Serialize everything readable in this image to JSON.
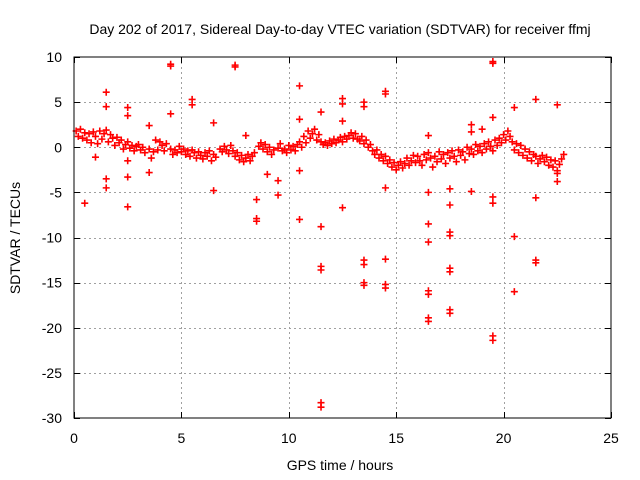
{
  "chart_data": {
    "type": "scatter",
    "title": "Day 202 of 2017, Sidereal Day-to-day VTEC variation (SDTVAR) for receiver ffmj",
    "xlabel": "GPS time / hours",
    "ylabel": "SDTVAR / TECUs",
    "xlim": [
      0,
      25
    ],
    "ylim": [
      -30,
      10
    ],
    "xticks": [
      0,
      5,
      10,
      15,
      20,
      25
    ],
    "yticks": [
      10,
      5,
      0,
      -5,
      -10,
      -15,
      -20,
      -25,
      -30
    ],
    "grid": true,
    "marker": "+",
    "marker_color": "#ff0000",
    "series": [
      {
        "name": "SDTVAR",
        "points": [
          [
            0.1,
            1.8
          ],
          [
            0.2,
            1.2
          ],
          [
            0.3,
            2.0
          ],
          [
            0.4,
            1.0
          ],
          [
            0.5,
            1.6
          ],
          [
            0.6,
            0.8
          ],
          [
            0.7,
            1.5
          ],
          [
            0.8,
            0.5
          ],
          [
            0.9,
            1.7
          ],
          [
            1.0,
            1.2
          ],
          [
            1.1,
            0.4
          ],
          [
            1.2,
            1.8
          ],
          [
            1.3,
            0.9
          ],
          [
            1.4,
            1.5
          ],
          [
            1.5,
            1.9
          ],
          [
            1.6,
            0.6
          ],
          [
            1.7,
            1.4
          ],
          [
            1.8,
            1.0
          ],
          [
            1.9,
            0.2
          ],
          [
            2.0,
            1.1
          ],
          [
            2.1,
            0.5
          ],
          [
            2.2,
            0.8
          ],
          [
            2.3,
            -0.2
          ],
          [
            2.4,
            0.3
          ],
          [
            2.5,
            0.6
          ],
          [
            2.6,
            -0.1
          ],
          [
            2.7,
            0.2
          ],
          [
            2.8,
            -0.4
          ],
          [
            2.9,
            0.1
          ],
          [
            3.0,
            0.3
          ],
          [
            3.1,
            -0.3
          ],
          [
            3.2,
            0.0
          ],
          [
            3.3,
            -0.6
          ],
          [
            3.5,
            -0.2
          ],
          [
            3.6,
            -1.2
          ],
          [
            3.7,
            -0.5
          ],
          [
            3.8,
            0.8
          ],
          [
            3.9,
            -0.3
          ],
          [
            4.0,
            0.6
          ],
          [
            4.1,
            0.2
          ],
          [
            4.2,
            -0.4
          ],
          [
            4.3,
            0.4
          ],
          [
            4.5,
            -0.2
          ],
          [
            4.6,
            -0.8
          ],
          [
            4.7,
            -0.3
          ],
          [
            4.8,
            -0.6
          ],
          [
            4.9,
            0.1
          ],
          [
            5.0,
            -0.5
          ],
          [
            5.1,
            -0.2
          ],
          [
            5.2,
            -0.8
          ],
          [
            5.3,
            -0.4
          ],
          [
            5.4,
            -1.0
          ],
          [
            5.5,
            -0.3
          ],
          [
            5.6,
            -0.6
          ],
          [
            5.7,
            -1.2
          ],
          [
            5.8,
            -0.5
          ],
          [
            5.9,
            -0.9
          ],
          [
            6.0,
            -1.3
          ],
          [
            6.1,
            -0.6
          ],
          [
            6.2,
            -1.0
          ],
          [
            6.3,
            -0.4
          ],
          [
            6.4,
            -1.5
          ],
          [
            6.5,
            -0.8
          ],
          [
            6.6,
            -1.1
          ],
          [
            6.8,
            -0.2
          ],
          [
            6.9,
            -0.5
          ],
          [
            7.0,
            0.1
          ],
          [
            7.1,
            -0.3
          ],
          [
            7.2,
            -0.7
          ],
          [
            7.3,
            0.2
          ],
          [
            7.4,
            -0.4
          ],
          [
            7.5,
            -1.0
          ],
          [
            7.6,
            -0.6
          ],
          [
            7.7,
            -1.4
          ],
          [
            7.8,
            -0.9
          ],
          [
            7.9,
            -1.6
          ],
          [
            8.0,
            -1.2
          ],
          [
            8.1,
            -0.8
          ],
          [
            8.2,
            -1.5
          ],
          [
            8.3,
            -1.0
          ],
          [
            8.4,
            -0.6
          ],
          [
            8.6,
            0.1
          ],
          [
            8.7,
            0.5
          ],
          [
            8.8,
            -0.2
          ],
          [
            8.9,
            0.3
          ],
          [
            9.0,
            -0.5
          ],
          [
            9.1,
            0.0
          ],
          [
            9.2,
            -0.8
          ],
          [
            9.3,
            -0.3
          ],
          [
            9.5,
            -0.1
          ],
          [
            9.6,
            0.4
          ],
          [
            9.7,
            -0.4
          ],
          [
            9.8,
            -0.2
          ],
          [
            9.9,
            -0.6
          ],
          [
            10.0,
            0.2
          ],
          [
            10.1,
            -0.3
          ],
          [
            10.2,
            0.1
          ],
          [
            10.3,
            -0.4
          ],
          [
            10.4,
            0.3
          ],
          [
            10.5,
            0.6
          ],
          [
            10.6,
            0.0
          ],
          [
            10.7,
            1.2
          ],
          [
            10.8,
            0.5
          ],
          [
            10.9,
            1.8
          ],
          [
            11.0,
            1.0
          ],
          [
            11.1,
            1.5
          ],
          [
            11.2,
            2.0
          ],
          [
            11.3,
            0.8
          ],
          [
            11.4,
            1.4
          ],
          [
            11.5,
            0.6
          ],
          [
            11.6,
            0.3
          ],
          [
            11.7,
            0.5
          ],
          [
            11.8,
            0.2
          ],
          [
            11.9,
            0.7
          ],
          [
            12.0,
            0.4
          ],
          [
            12.1,
            0.9
          ],
          [
            12.2,
            0.5
          ],
          [
            12.3,
            0.8
          ],
          [
            12.4,
            1.1
          ],
          [
            12.5,
            0.6
          ],
          [
            12.6,
            1.2
          ],
          [
            12.7,
            0.9
          ],
          [
            12.8,
            1.3
          ],
          [
            12.9,
            1.6
          ],
          [
            13.0,
            1.0
          ],
          [
            13.1,
            1.5
          ],
          [
            13.2,
            0.9
          ],
          [
            13.3,
            0.7
          ],
          [
            13.4,
            1.2
          ],
          [
            13.5,
            0.4
          ],
          [
            13.6,
            0.8
          ],
          [
            13.7,
            0.0
          ],
          [
            13.8,
            0.3
          ],
          [
            13.9,
            -0.4
          ],
          [
            14.0,
            -0.8
          ],
          [
            14.1,
            -0.3
          ],
          [
            14.2,
            -1.2
          ],
          [
            14.3,
            -0.8
          ],
          [
            14.4,
            -1.5
          ],
          [
            14.5,
            -1.0
          ],
          [
            14.6,
            -1.8
          ],
          [
            14.7,
            -1.4
          ],
          [
            14.8,
            -2.2
          ],
          [
            14.9,
            -1.7
          ],
          [
            15.0,
            -2.5
          ],
          [
            15.1,
            -2.0
          ],
          [
            15.2,
            -1.6
          ],
          [
            15.3,
            -2.3
          ],
          [
            15.4,
            -1.8
          ],
          [
            15.5,
            -1.2
          ],
          [
            15.6,
            -2.0
          ],
          [
            15.7,
            -1.5
          ],
          [
            15.8,
            -0.9
          ],
          [
            15.9,
            -1.7
          ],
          [
            16.0,
            -1.0
          ],
          [
            16.1,
            -1.5
          ],
          [
            16.2,
            -2.0
          ],
          [
            16.3,
            -0.8
          ],
          [
            16.4,
            -1.4
          ],
          [
            16.5,
            -0.6
          ],
          [
            16.6,
            -1.2
          ],
          [
            16.7,
            -2.2
          ],
          [
            16.8,
            -1.0
          ],
          [
            16.9,
            -1.6
          ],
          [
            17.0,
            -0.5
          ],
          [
            17.1,
            -1.3
          ],
          [
            17.2,
            -0.8
          ],
          [
            17.3,
            -1.8
          ],
          [
            17.4,
            -0.6
          ],
          [
            17.5,
            -1.2
          ],
          [
            17.6,
            -0.4
          ],
          [
            17.7,
            -1.0
          ],
          [
            17.8,
            -1.6
          ],
          [
            17.9,
            -0.3
          ],
          [
            18.0,
            -0.9
          ],
          [
            18.1,
            -0.5
          ],
          [
            18.2,
            -1.4
          ],
          [
            18.3,
            0.0
          ],
          [
            18.4,
            -0.7
          ],
          [
            18.5,
            -0.2
          ],
          [
            18.6,
            -0.8
          ],
          [
            18.7,
            0.3
          ],
          [
            18.8,
            -0.4
          ],
          [
            18.9,
            0.1
          ],
          [
            19.0,
            -0.6
          ],
          [
            19.1,
            0.4
          ],
          [
            19.2,
            -0.2
          ],
          [
            19.3,
            0.6
          ],
          [
            19.4,
            0.1
          ],
          [
            19.5,
            -0.4
          ],
          [
            19.6,
            0.8
          ],
          [
            19.7,
            0.2
          ],
          [
            19.8,
            1.0
          ],
          [
            19.9,
            0.5
          ],
          [
            20.0,
            1.4
          ],
          [
            20.1,
            0.8
          ],
          [
            20.2,
            1.8
          ],
          [
            20.3,
            1.2
          ],
          [
            20.4,
            0.6
          ],
          [
            20.5,
            -0.3
          ],
          [
            20.6,
            0.4
          ],
          [
            20.7,
            -0.6
          ],
          [
            20.8,
            0.2
          ],
          [
            20.9,
            -0.9
          ],
          [
            21.0,
            -0.2
          ],
          [
            21.1,
            -1.2
          ],
          [
            21.2,
            -0.5
          ],
          [
            21.3,
            -1.5
          ],
          [
            21.4,
            -0.8
          ],
          [
            21.5,
            -1.0
          ],
          [
            21.6,
            -1.8
          ],
          [
            21.7,
            -1.3
          ],
          [
            21.8,
            -0.9
          ],
          [
            21.9,
            -1.6
          ],
          [
            22.0,
            -1.1
          ],
          [
            22.1,
            -2.0
          ],
          [
            22.2,
            -1.4
          ],
          [
            22.3,
            -2.2
          ],
          [
            22.4,
            -1.5
          ],
          [
            22.5,
            -2.6
          ],
          [
            22.6,
            -1.9
          ],
          [
            22.7,
            -1.3
          ],
          [
            22.8,
            -0.8
          ],
          [
            0.5,
            -6.2
          ],
          [
            1.0,
            -1.1
          ],
          [
            1.5,
            6.1
          ],
          [
            1.5,
            4.5
          ],
          [
            1.5,
            -3.5
          ],
          [
            1.5,
            -4.5
          ],
          [
            2.5,
            4.4
          ],
          [
            2.5,
            3.5
          ],
          [
            2.5,
            -1.5
          ],
          [
            2.5,
            -3.3
          ],
          [
            2.5,
            -6.6
          ],
          [
            3.5,
            2.4
          ],
          [
            3.5,
            -2.8
          ],
          [
            4.5,
            9.2
          ],
          [
            4.5,
            9.0
          ],
          [
            4.5,
            3.7
          ],
          [
            5.5,
            5.3
          ],
          [
            5.5,
            4.7
          ],
          [
            6.5,
            2.7
          ],
          [
            6.5,
            -4.8
          ],
          [
            7.5,
            9.1
          ],
          [
            7.5,
            8.9
          ],
          [
            8.0,
            1.3
          ],
          [
            8.5,
            -5.8
          ],
          [
            8.5,
            -7.9
          ],
          [
            8.5,
            -8.2
          ],
          [
            9.0,
            -3.0
          ],
          [
            9.5,
            -3.7
          ],
          [
            9.5,
            -5.3
          ],
          [
            10.5,
            6.8
          ],
          [
            10.5,
            3.1
          ],
          [
            10.5,
            -2.6
          ],
          [
            10.5,
            -8.0
          ],
          [
            11.5,
            3.9
          ],
          [
            11.5,
            -8.8
          ],
          [
            11.5,
            -13.2
          ],
          [
            11.5,
            -13.6
          ],
          [
            11.5,
            -28.3
          ],
          [
            11.5,
            -28.8
          ],
          [
            12.5,
            5.4
          ],
          [
            12.5,
            4.8
          ],
          [
            12.5,
            2.9
          ],
          [
            12.5,
            -6.7
          ],
          [
            13.5,
            5.0
          ],
          [
            13.5,
            4.5
          ],
          [
            13.5,
            -12.5
          ],
          [
            13.5,
            -13.0
          ],
          [
            13.5,
            -15.0
          ],
          [
            13.5,
            -15.3
          ],
          [
            14.5,
            6.2
          ],
          [
            14.5,
            5.9
          ],
          [
            14.5,
            -4.5
          ],
          [
            14.5,
            -12.4
          ],
          [
            14.5,
            -15.2
          ],
          [
            14.5,
            -15.6
          ],
          [
            16.5,
            1.3
          ],
          [
            16.5,
            -5.0
          ],
          [
            16.5,
            -8.5
          ],
          [
            16.5,
            -10.5
          ],
          [
            16.5,
            -15.9
          ],
          [
            16.5,
            -16.3
          ],
          [
            16.5,
            -18.9
          ],
          [
            16.5,
            -19.3
          ],
          [
            17.5,
            -4.6
          ],
          [
            17.5,
            -6.4
          ],
          [
            17.5,
            -9.4
          ],
          [
            17.5,
            -9.8
          ],
          [
            17.5,
            -13.4
          ],
          [
            17.5,
            -13.8
          ],
          [
            17.5,
            -18.0
          ],
          [
            17.5,
            -18.4
          ],
          [
            18.5,
            2.5
          ],
          [
            18.5,
            1.7
          ],
          [
            18.5,
            -4.9
          ],
          [
            19.0,
            2.0
          ],
          [
            19.5,
            9.5
          ],
          [
            19.5,
            9.3
          ],
          [
            19.5,
            3.3
          ],
          [
            19.5,
            -5.5
          ],
          [
            19.5,
            -6.2
          ],
          [
            19.5,
            -20.9
          ],
          [
            19.5,
            -21.4
          ],
          [
            20.5,
            4.4
          ],
          [
            20.5,
            -9.9
          ],
          [
            20.5,
            -16.0
          ],
          [
            21.5,
            5.3
          ],
          [
            21.5,
            -5.6
          ],
          [
            21.5,
            -12.5
          ],
          [
            21.5,
            -12.8
          ],
          [
            22.5,
            4.7
          ],
          [
            22.5,
            -2.9
          ],
          [
            22.5,
            -3.8
          ]
        ]
      }
    ]
  }
}
